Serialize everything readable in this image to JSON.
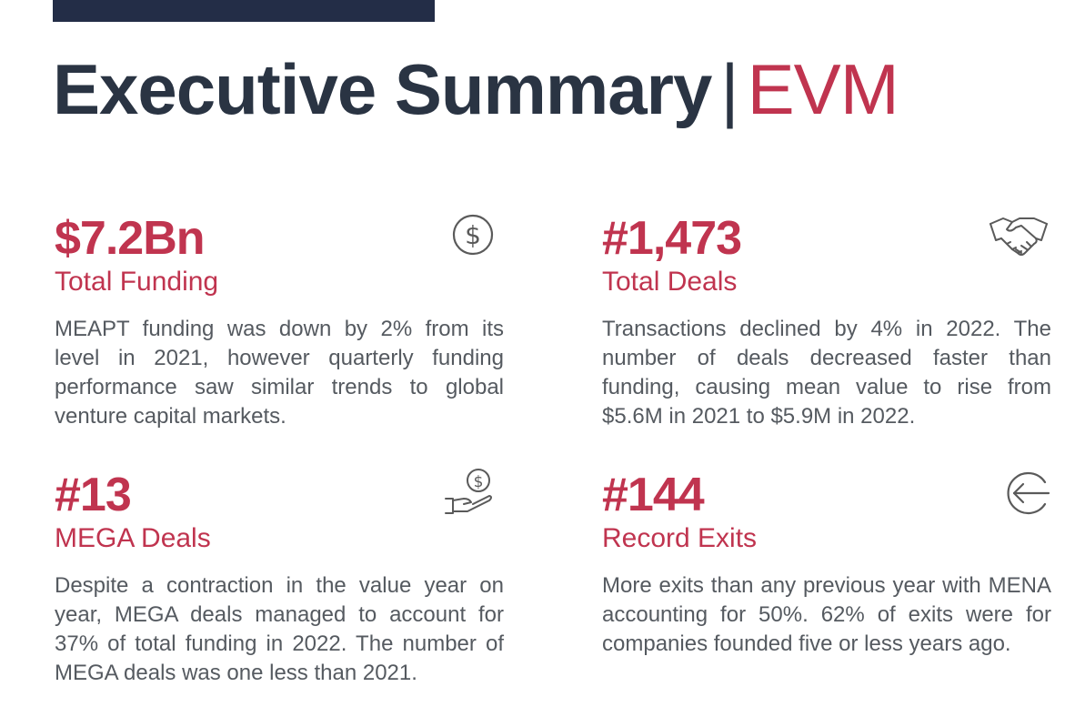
{
  "header": {
    "title": "Executive Summary",
    "separator": "|",
    "accent": "EVM"
  },
  "colors": {
    "accent": "#c0344f",
    "heading": "#2a3443",
    "bar": "#232d47",
    "body_text": "#555a60"
  },
  "cards": [
    {
      "stat": "$7.2Bn",
      "label": "Total Funding",
      "icon": "dollar-circle-icon",
      "description": "MEAPT funding was down by 2% from its level in 2021, however quarterly funding performance saw similar trends to global venture capital markets."
    },
    {
      "stat": "#1,473",
      "label": "Total Deals",
      "icon": "handshake-icon",
      "description": "Transactions declined by 4% in 2022. The number of deals decreased faster than funding, causing mean value to rise  from $5.6M in 2021 to $5.9M in 2022."
    },
    {
      "stat": "#13",
      "label": "MEGA Deals",
      "icon": "hand-coin-icon",
      "description": "Despite a contraction in the value year on year, MEGA deals managed to account for 37% of total funding in 2022. The number of MEGA deals was one less than 2021."
    },
    {
      "stat": "#144",
      "label": "Record Exits",
      "icon": "exit-arrow-icon",
      "description": "More exits than any previous year with MENA accounting for 50%. 62% of exits were for companies founded five or less years ago."
    }
  ]
}
